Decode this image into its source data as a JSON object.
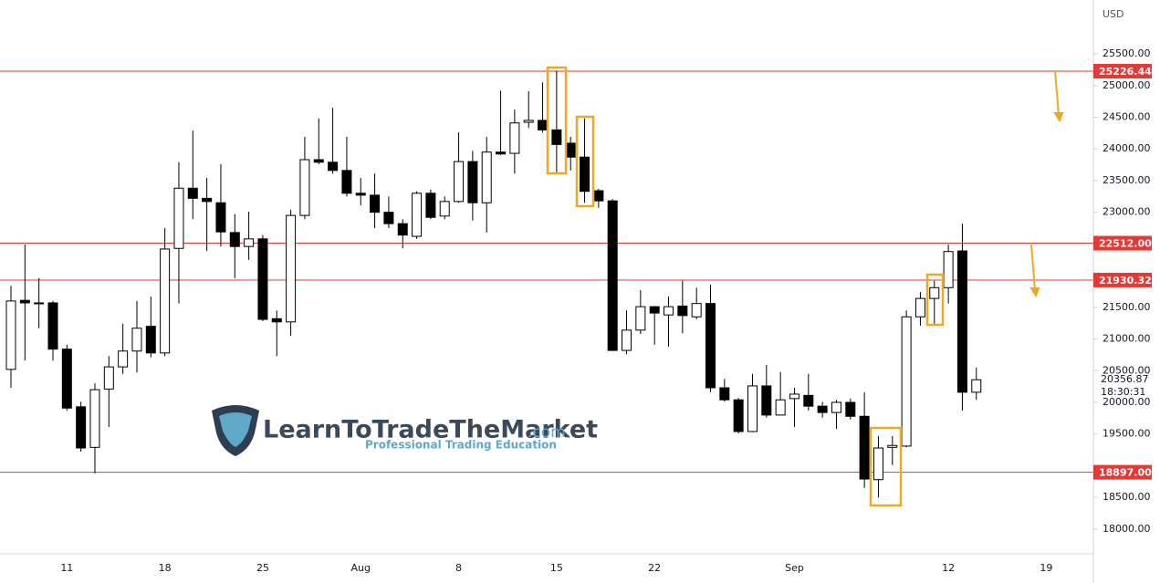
{
  "chart_data": {
    "type": "candlestick",
    "currency": "USD",
    "brand": {
      "name": "LearnToTradeTheMarket",
      "domain": ".com",
      "tagline": "Professional Trading Education"
    },
    "categories": [
      null,
      null,
      null,
      null,
      "11",
      null,
      null,
      null,
      null,
      null,
      null,
      "18",
      null,
      null,
      null,
      null,
      null,
      null,
      "25",
      null,
      null,
      null,
      null,
      null,
      null,
      "Aug",
      null,
      null,
      null,
      null,
      null,
      null,
      "8",
      null,
      null,
      null,
      null,
      null,
      null,
      "15",
      null,
      null,
      null,
      null,
      null,
      null,
      "22",
      null,
      null,
      null,
      null,
      null,
      null,
      null,
      null,
      null,
      "Sep",
      null,
      null,
      null,
      null,
      null,
      null,
      null,
      null,
      null,
      null,
      "12",
      null,
      null,
      null,
      null,
      null,
      null,
      "19",
      null,
      null,
      null
    ],
    "open": [
      20520,
      21610,
      21570,
      21570,
      20840,
      19930,
      19290,
      20210,
      20560,
      20810,
      21200,
      20780,
      22430,
      23380,
      23220,
      23150,
      22680,
      22460,
      22580,
      21320,
      21270,
      22950,
      23830,
      23790,
      23660,
      23300,
      23270,
      23000,
      22820,
      22620,
      23300,
      22940,
      23170,
      23800,
      23150,
      23950,
      23930,
      24420,
      24450,
      24300,
      24090,
      23870,
      23340,
      23180,
      20820,
      21140,
      21510,
      21380,
      21520,
      21350,
      21560,
      20230,
      20040,
      19540,
      20260,
      19800,
      20060,
      20110,
      19940,
      19840,
      20000,
      19780,
      18780,
      19290,
      19310,
      21350,
      21640,
      21810,
      22390,
      20160,
      null,
      null,
      null,
      null,
      null,
      null,
      null,
      null
    ],
    "high": [
      21840,
      22490,
      21960,
      21600,
      20910,
      20010,
      20300,
      20730,
      21240,
      21600,
      21670,
      22750,
      23790,
      24290,
      23540,
      23760,
      22970,
      23010,
      22640,
      21450,
      23040,
      24190,
      24480,
      24650,
      24190,
      23540,
      23610,
      23250,
      22890,
      23330,
      23360,
      23250,
      24260,
      23970,
      24190,
      24920,
      24620,
      24910,
      25050,
      25230,
      24190,
      24480,
      23370,
      23210,
      21450,
      21770,
      21520,
      21670,
      21920,
      21810,
      21860,
      20370,
      20070,
      20450,
      20590,
      20480,
      20230,
      20450,
      20010,
      20040,
      20060,
      20160,
      19470,
      19470,
      21450,
      21740,
      21920,
      22490,
      22820,
      20550,
      null,
      null,
      null,
      null,
      null,
      null,
      null,
      null
    ],
    "low": [
      20230,
      20660,
      21170,
      20660,
      19870,
      19220,
      18880,
      19610,
      20450,
      20470,
      20710,
      20730,
      21560,
      22890,
      22390,
      22460,
      21960,
      22250,
      21280,
      20730,
      21050,
      22890,
      23760,
      23610,
      23250,
      23110,
      22750,
      22750,
      22430,
      22580,
      22890,
      22890,
      23150,
      22870,
      22680,
      23900,
      23610,
      24330,
      24260,
      23610,
      23660,
      23150,
      23070,
      20810,
      20760,
      21080,
      20910,
      20880,
      21090,
      21310,
      20160,
      20010,
      19510,
      19530,
      19760,
      19800,
      19610,
      19870,
      19760,
      19580,
      19730,
      18650,
      18500,
      19010,
      19290,
      21210,
      21210,
      21560,
      19870,
      20040,
      null,
      null,
      null,
      null,
      null,
      null,
      null,
      null
    ],
    "close": [
      21600,
      21570,
      21560,
      20840,
      19910,
      19280,
      20200,
      20560,
      20810,
      21170,
      20780,
      22420,
      23380,
      23220,
      23170,
      22690,
      22460,
      22580,
      21310,
      21270,
      22950,
      23830,
      23790,
      23660,
      23300,
      23270,
      23000,
      22820,
      22640,
      23300,
      22920,
      23170,
      23800,
      23150,
      23950,
      23920,
      24410,
      24450,
      24300,
      24070,
      23870,
      23330,
      23180,
      20820,
      21140,
      21510,
      21410,
      21510,
      21370,
      21560,
      20230,
      20040,
      19540,
      20260,
      19800,
      20040,
      20130,
      19940,
      19840,
      20000,
      19780,
      18790,
      19280,
      19320,
      21350,
      21640,
      21810,
      22380,
      20160,
      20356.87,
      null,
      null,
      null,
      null,
      null,
      null,
      null,
      null
    ],
    "ylim": [
      17610,
      26350
    ],
    "yticks": [
      {
        "value": 25500,
        "label": "25500.00"
      },
      {
        "value": 25000,
        "label": "25000.00"
      },
      {
        "value": 24500,
        "label": "24500.00"
      },
      {
        "value": 24000,
        "label": "24000.00"
      },
      {
        "value": 23500,
        "label": "23500.00"
      },
      {
        "value": 23000,
        "label": "23000.00"
      },
      {
        "value": 21500,
        "label": "21500.00"
      },
      {
        "value": 21000,
        "label": "21000.00"
      },
      {
        "value": 20500,
        "label": "20500.00"
      },
      {
        "value": 20000,
        "label": "20000.00"
      },
      {
        "value": 19500,
        "label": "19500.00"
      },
      {
        "value": 18500,
        "label": "18500.00"
      },
      {
        "value": 18000,
        "label": "18000.00"
      }
    ],
    "levels": [
      {
        "value": 25226.44,
        "label": "25226.44"
      },
      {
        "value": 22512,
        "label": "22512.00"
      },
      {
        "value": 21930.32,
        "label": "21930.32"
      },
      {
        "value": 18897,
        "label": "18897.00"
      }
    ],
    "level_color": "#e53935",
    "last_price": {
      "value": 20356.87,
      "label": "20356.87"
    },
    "countdown": "18:30:31"
  }
}
